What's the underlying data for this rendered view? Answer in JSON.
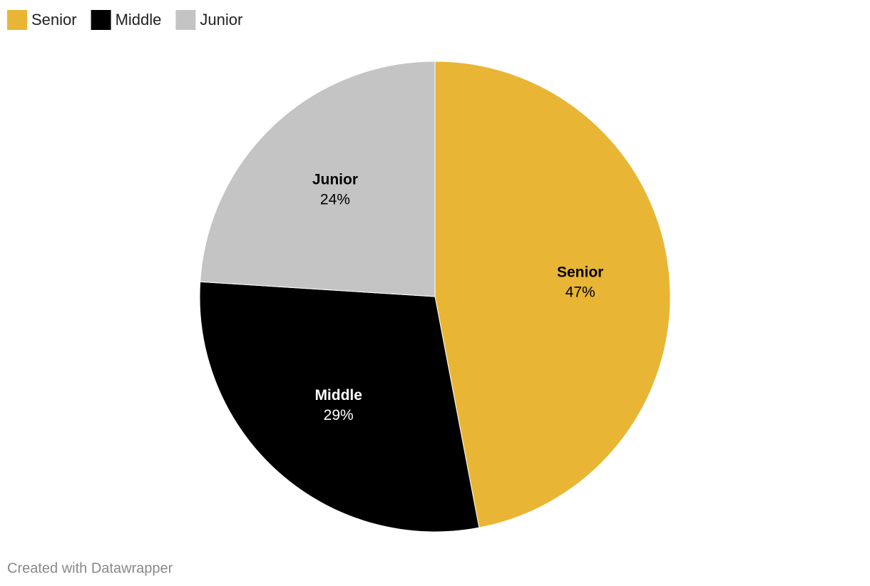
{
  "chart_data": {
    "type": "pie",
    "categories": [
      "Senior",
      "Middle",
      "Junior"
    ],
    "values": [
      47,
      29,
      24
    ],
    "value_labels": [
      "47%",
      "29%",
      "24%"
    ],
    "colors": [
      "#e9b535",
      "#000000",
      "#c4c4c4"
    ],
    "legend": "top-left",
    "footer": "Created with Datawrapper"
  }
}
